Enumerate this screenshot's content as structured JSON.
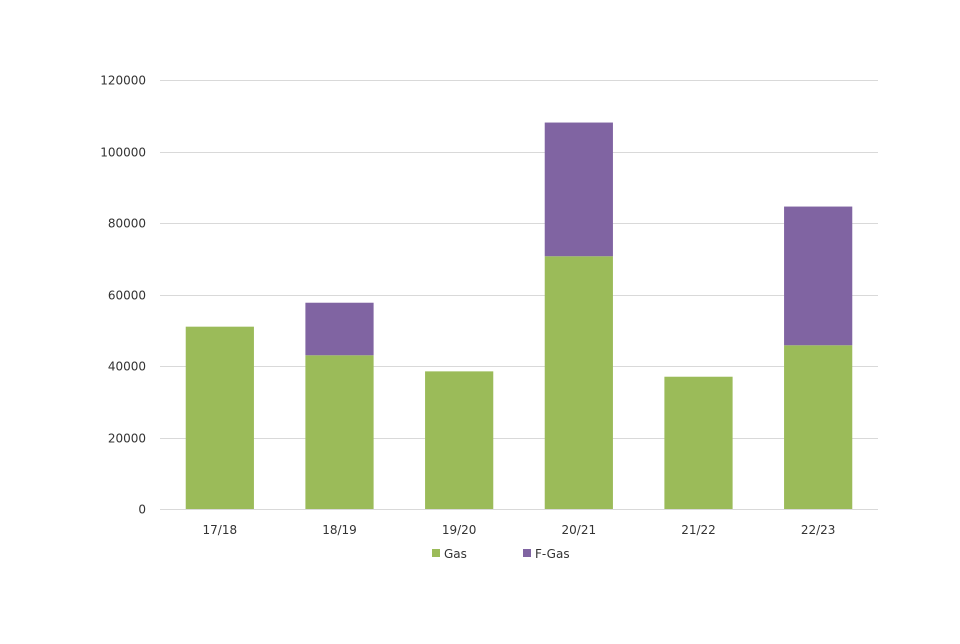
{
  "chart_data": {
    "type": "bar",
    "stacked": true,
    "title": "",
    "xlabel": "",
    "ylabel": "",
    "categories": [
      "17/18",
      "18/19",
      "19/20",
      "20/21",
      "21/22",
      "22/23"
    ],
    "series": [
      {
        "name": "Gas",
        "color": "#9bbb59",
        "values": [
          51000,
          43000,
          38500,
          70700,
          37000,
          45800
        ]
      },
      {
        "name": "F-Gas",
        "color": "#8064a2",
        "values": [
          0,
          14700,
          0,
          37400,
          0,
          38800
        ]
      }
    ],
    "ylim": [
      0,
      120000
    ],
    "yticks": [
      0,
      20000,
      40000,
      60000,
      80000,
      100000,
      120000
    ],
    "grid": true,
    "legend_position": "bottom"
  }
}
